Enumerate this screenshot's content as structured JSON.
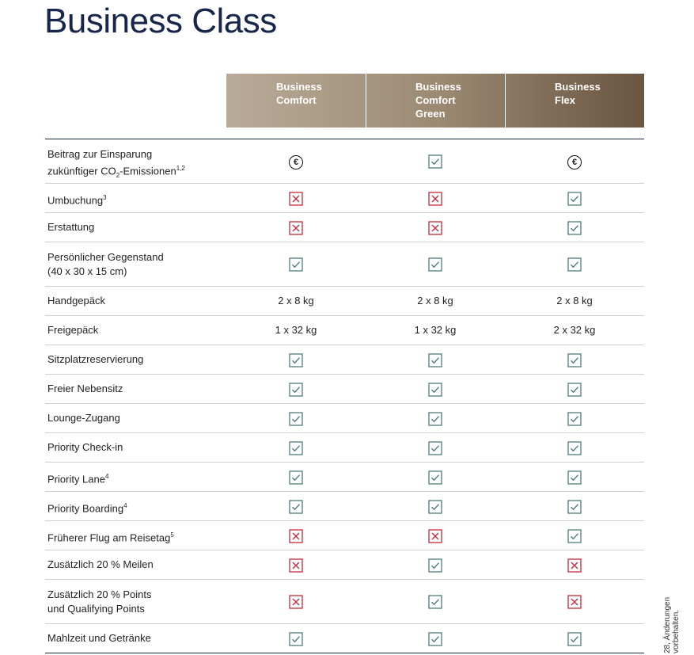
{
  "title": "Business Class",
  "columns": [
    [
      "Business",
      "Comfort"
    ],
    [
      "Business",
      "Comfort",
      "Green"
    ],
    [
      "Business",
      "Flex"
    ]
  ],
  "rows": [
    {
      "label": [
        [
          "Beitrag zur Einsparung"
        ],
        [
          "zukünftiger CO",
          {
            "sub": "2"
          },
          "-Emissionen",
          {
            "sup": "1,2"
          }
        ]
      ],
      "cells": [
        {
          "symbol": "€"
        },
        true,
        {
          "symbol": "€"
        }
      ]
    },
    {
      "label": [
        [
          "Umbuchung",
          {
            "sup": "3"
          }
        ]
      ],
      "cells": [
        false,
        false,
        true
      ]
    },
    {
      "label": [
        [
          "Erstattung"
        ]
      ],
      "cells": [
        false,
        false,
        true
      ]
    },
    {
      "label": [
        [
          "Persönlicher Gegenstand"
        ],
        [
          "(40 x 30 x 15 cm)"
        ]
      ],
      "cells": [
        true,
        true,
        true
      ]
    },
    {
      "label": [
        [
          "Handgepäck"
        ]
      ],
      "cells": [
        "2 x 8 kg",
        "2 x 8 kg",
        "2 x 8 kg"
      ]
    },
    {
      "label": [
        [
          "Freigepäck"
        ]
      ],
      "cells": [
        "1 x 32 kg",
        "1 x 32 kg",
        "2 x 32 kg"
      ]
    },
    {
      "label": [
        [
          "Sitzplatzreservierung"
        ]
      ],
      "cells": [
        true,
        true,
        true
      ]
    },
    {
      "label": [
        [
          "Freier Nebensitz"
        ]
      ],
      "cells": [
        true,
        true,
        true
      ]
    },
    {
      "label": [
        [
          "Lounge-Zugang"
        ]
      ],
      "cells": [
        true,
        true,
        true
      ]
    },
    {
      "label": [
        [
          "Priority Check-in"
        ]
      ],
      "cells": [
        true,
        true,
        true
      ]
    },
    {
      "label": [
        [
          "Priority Lane",
          {
            "sup": "4"
          }
        ]
      ],
      "cells": [
        true,
        true,
        true
      ]
    },
    {
      "label": [
        [
          "Priority Boarding",
          {
            "sup": "4"
          }
        ]
      ],
      "cells": [
        true,
        true,
        true
      ]
    },
    {
      "label": [
        [
          "Früherer Flug am Reisetag",
          {
            "sup": "5"
          }
        ]
      ],
      "cells": [
        false,
        false,
        true
      ]
    },
    {
      "label": [
        [
          "Zusätzlich 20 % Meilen"
        ]
      ],
      "cells": [
        false,
        true,
        false
      ]
    },
    {
      "label": [
        [
          "Zusätzlich 20 % Points"
        ],
        [
          "und Qualifying Points"
        ]
      ],
      "cells": [
        false,
        true,
        false
      ]
    },
    {
      "label": [
        [
          "Mahlzeit und Getränke"
        ]
      ],
      "cells": [
        true,
        true,
        true
      ]
    }
  ],
  "side_note": "28, Änderungen vorbehalten."
}
